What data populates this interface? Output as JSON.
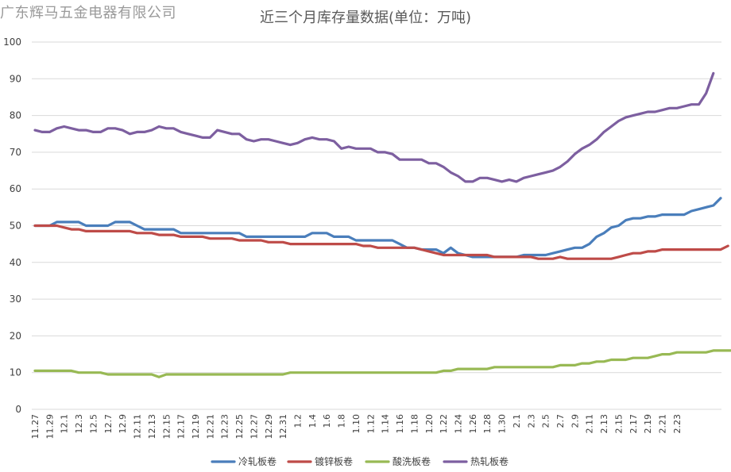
{
  "watermark": "广东辉马五金电器有限公司",
  "chart_data": {
    "type": "line",
    "title": "近三个月库存量数据(单位：万吨)",
    "xlabel": "",
    "ylabel": "",
    "ylim": [
      0,
      100
    ],
    "yticks": [
      0,
      10,
      20,
      30,
      40,
      50,
      60,
      70,
      80,
      90,
      100
    ],
    "grid": true,
    "legend_position": "bottom",
    "x_tick_labels": [
      "11.27",
      "11.29",
      "12.1",
      "12.3",
      "12.5",
      "12.7",
      "12.9",
      "12.11",
      "12.13",
      "12.15",
      "12.17",
      "12.19",
      "12.21",
      "12.23",
      "12.25",
      "12.27",
      "12.29",
      "12.31",
      "1.2",
      "1.4",
      "1.6",
      "1.8",
      "1.10",
      "1.12",
      "1.14",
      "1.16",
      "1.18",
      "1.20",
      "1.22",
      "1.24",
      "1.26",
      "1.28",
      "1.30",
      "2.1",
      "2.3",
      "2.5",
      "2.7",
      "2.9",
      "2.11",
      "2.13",
      "2.15",
      "2.17",
      "2.19",
      "2.21",
      "2.23"
    ],
    "series": [
      {
        "name": "冷轧板卷",
        "color": "#4a7ebb",
        "values": [
          50,
          50,
          50,
          51,
          51,
          51,
          51,
          50,
          50,
          50,
          50,
          51,
          51,
          51,
          50,
          49,
          49,
          49,
          49,
          49,
          48,
          48,
          48,
          48,
          48,
          48,
          48,
          48,
          48,
          47,
          47,
          47,
          47,
          47,
          47,
          47,
          47,
          47,
          48,
          48,
          48,
          47,
          47,
          47,
          46,
          46,
          46,
          46,
          46,
          46,
          45,
          44,
          44,
          43.5,
          43.5,
          43.5,
          42.5,
          44,
          42.5,
          42,
          41.5,
          41.5,
          41.5,
          41.5,
          41.5,
          41.5,
          41.5,
          42,
          42,
          42,
          42,
          42.5,
          43,
          43.5,
          44,
          44,
          45,
          47,
          48,
          49.5,
          50,
          51.5,
          52,
          52,
          52.5,
          52.5,
          53,
          53,
          53,
          53,
          54,
          54.5,
          55,
          55.5,
          57.5
        ]
      },
      {
        "name": "镀锌板卷",
        "color": "#be4b48",
        "values": [
          50,
          50,
          50,
          50,
          49.5,
          49,
          49,
          48.5,
          48.5,
          48.5,
          48.5,
          48.5,
          48.5,
          48.5,
          48,
          48,
          48,
          47.5,
          47.5,
          47.5,
          47,
          47,
          47,
          47,
          46.5,
          46.5,
          46.5,
          46.5,
          46,
          46,
          46,
          46,
          45.5,
          45.5,
          45.5,
          45,
          45,
          45,
          45,
          45,
          45,
          45,
          45,
          45,
          45,
          44.5,
          44.5,
          44,
          44,
          44,
          44,
          44,
          44,
          43.5,
          43,
          42.5,
          42,
          42,
          42,
          42,
          42,
          42,
          42,
          41.5,
          41.5,
          41.5,
          41.5,
          41.5,
          41.5,
          41,
          41,
          41,
          41.5,
          41,
          41,
          41,
          41,
          41,
          41,
          41,
          41.5,
          42,
          42.5,
          42.5,
          43,
          43,
          43.5,
          43.5,
          43.5,
          43.5,
          43.5,
          43.5,
          43.5,
          43.5,
          43.5,
          44.5
        ]
      },
      {
        "name": "酸洗板卷",
        "color": "#98b954",
        "values": [
          10.5,
          10.5,
          10.5,
          10.5,
          10.5,
          10.5,
          10,
          10,
          10,
          10,
          9.5,
          9.5,
          9.5,
          9.5,
          9.5,
          9.5,
          9.5,
          8.8,
          9.5,
          9.5,
          9.5,
          9.5,
          9.5,
          9.5,
          9.5,
          9.5,
          9.5,
          9.5,
          9.5,
          9.5,
          9.5,
          9.5,
          9.5,
          9.5,
          9.5,
          10,
          10,
          10,
          10,
          10,
          10,
          10,
          10,
          10,
          10,
          10,
          10,
          10,
          10,
          10,
          10,
          10,
          10,
          10,
          10,
          10,
          10.5,
          10.5,
          11,
          11,
          11,
          11,
          11,
          11.5,
          11.5,
          11.5,
          11.5,
          11.5,
          11.5,
          11.5,
          11.5,
          11.5,
          12,
          12,
          12,
          12.5,
          12.5,
          13,
          13,
          13.5,
          13.5,
          13.5,
          14,
          14,
          14,
          14.5,
          15,
          15,
          15.5,
          15.5,
          15.5,
          15.5,
          15.5,
          16,
          16,
          16,
          16,
          16,
          16.5,
          16.5
        ]
      },
      {
        "name": "热轧板卷",
        "color": "#7d5fa0",
        "values": [
          76,
          75.5,
          75.5,
          76.5,
          77,
          76.5,
          76,
          76,
          75.5,
          75.5,
          76.5,
          76.5,
          76,
          75,
          75.5,
          75.5,
          76,
          77,
          76.5,
          76.5,
          75.5,
          75,
          74.5,
          74,
          74,
          76,
          75.5,
          75,
          75,
          73.5,
          73,
          73.5,
          73.5,
          73,
          72.5,
          72,
          72.5,
          73.5,
          74,
          73.5,
          73.5,
          73,
          71,
          71.5,
          71,
          71,
          71,
          70,
          70,
          69.5,
          68,
          68,
          68,
          68,
          67,
          67,
          66,
          64.5,
          63.5,
          62,
          62,
          63,
          63,
          62.5,
          62,
          62.5,
          62,
          63,
          63.5,
          64,
          64.5,
          65,
          66,
          67.5,
          69.5,
          71,
          72,
          73.5,
          75.5,
          77,
          78.5,
          79.5,
          80,
          80.5,
          81,
          81,
          81.5,
          82,
          82,
          82.5,
          83,
          83,
          86,
          91.5
        ]
      }
    ]
  }
}
